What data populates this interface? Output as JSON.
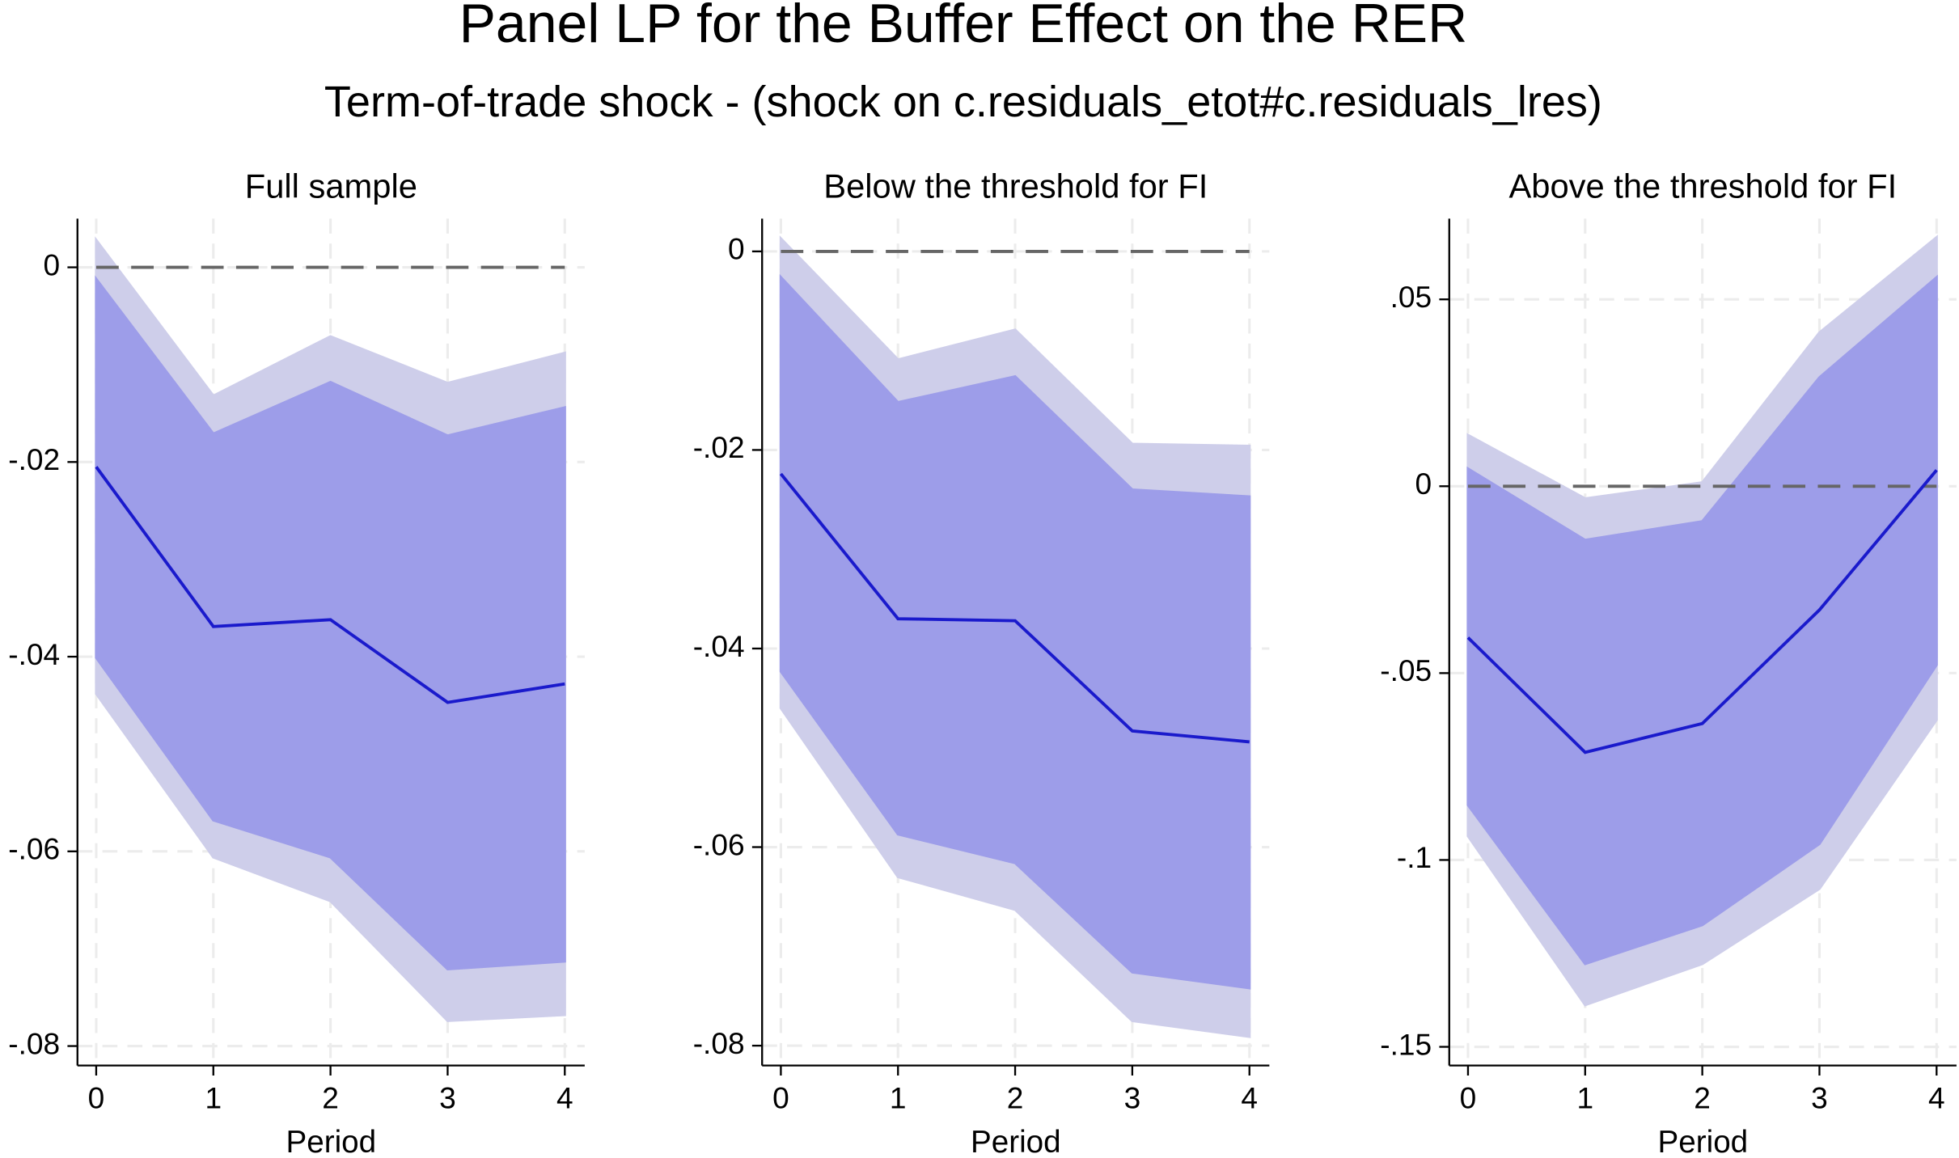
{
  "title": "Panel LP for the Buffer Effect on the RER",
  "subtitle": "Term-of-trade shock - (shock on c.residuals_etot#c.residuals_lres)",
  "chart_data": [
    {
      "type": "line",
      "title": "Full sample",
      "xlabel": "Period",
      "x": [
        0,
        1,
        2,
        3,
        4
      ],
      "xlim": [
        -0.16,
        4.17
      ],
      "xticks": [
        0,
        1,
        2,
        3,
        4
      ],
      "ylim": [
        -0.082,
        0.005
      ],
      "yticks": [
        {
          "value": -0.08,
          "label": "-.08"
        },
        {
          "value": -0.06,
          "label": "-.06"
        },
        {
          "value": -0.04,
          "label": "-.04"
        },
        {
          "value": -0.02,
          "label": "-.02"
        },
        0
      ],
      "grid": true,
      "reference_line": 0,
      "bands": [
        {
          "color": "#dedefc",
          "lower": [
            -0.0438,
            -0.0606,
            -0.0651,
            -0.0774,
            -0.0768
          ],
          "upper": [
            0.0028,
            -0.0132,
            -0.0071,
            -0.0119,
            -0.0088
          ]
        },
        {
          "color": "#a9a9fa",
          "lower": [
            -0.0401,
            -0.0568,
            -0.0606,
            -0.0721,
            -0.0713
          ],
          "upper": [
            -0.0012,
            -0.0171,
            -0.0118,
            -0.0173,
            -0.0144
          ]
        }
      ],
      "series": [
        {
          "color": "#1a1acc",
          "values": [
            -0.0205,
            -0.0369,
            -0.0362,
            -0.0447,
            -0.0428
          ]
        }
      ]
    },
    {
      "type": "line",
      "title": "Below the threshold for FI",
      "xlabel": "Period",
      "x": [
        0,
        1,
        2,
        3,
        4
      ],
      "xlim": [
        -0.16,
        4.17
      ],
      "xticks": [
        0,
        1,
        2,
        3,
        4
      ],
      "ylim": [
        -0.082,
        0.0033
      ],
      "yticks": [
        {
          "value": -0.08,
          "label": "-.08"
        },
        {
          "value": -0.06,
          "label": "-.06"
        },
        {
          "value": -0.04,
          "label": "-.04"
        },
        {
          "value": -0.02,
          "label": "-.02"
        },
        0
      ],
      "grid": true,
      "reference_line": 0,
      "bands": [
        {
          "color": "#dedefc",
          "lower": [
            -0.046,
            -0.063,
            -0.0663,
            -0.0775,
            -0.0791
          ],
          "upper": [
            0.0013,
            -0.0109,
            -0.0079,
            -0.0194,
            -0.0196
          ]
        },
        {
          "color": "#a9a9fa",
          "lower": [
            -0.0423,
            -0.0587,
            -0.0616,
            -0.0726,
            -0.0742
          ],
          "upper": [
            -0.0026,
            -0.0152,
            -0.0126,
            -0.024,
            -0.0247
          ]
        }
      ],
      "series": [
        {
          "color": "#1a1acc",
          "values": [
            -0.0224,
            -0.037,
            -0.0372,
            -0.0483,
            -0.0494
          ]
        }
      ]
    },
    {
      "type": "line",
      "title": "Above the threshold for FI",
      "xlabel": "Period",
      "x": [
        0,
        1,
        2,
        3,
        4
      ],
      "xlim": [
        -0.16,
        4.17
      ],
      "xticks": [
        0,
        1,
        2,
        3,
        4
      ],
      "ylim": [
        -0.155,
        0.0716
      ],
      "yticks": [
        {
          "value": -0.15,
          "label": "-.15"
        },
        {
          "value": -0.1,
          "label": "-.1"
        },
        {
          "value": -0.05,
          "label": "-.05"
        },
        0,
        {
          "value": 0.05,
          "label": ".05"
        }
      ],
      "grid": true,
      "reference_line": 0,
      "bands": [
        {
          "color": "#dedefc",
          "lower": [
            -0.0936,
            -0.1388,
            -0.1278,
            -0.1077,
            -0.0625
          ],
          "upper": [
            0.0137,
            -0.0033,
            0.001,
            0.0411,
            0.0666
          ]
        },
        {
          "color": "#a9a9fa",
          "lower": [
            -0.0853,
            -0.1278,
            -0.1174,
            -0.0957,
            -0.0478
          ],
          "upper": [
            0.0047,
            -0.0144,
            -0.0094,
            0.0291,
            0.0559
          ]
        }
      ],
      "series": [
        {
          "color": "#1a1acc",
          "values": [
            -0.0405,
            -0.0712,
            -0.0635,
            -0.0331,
            0.0043
          ]
        }
      ]
    }
  ]
}
